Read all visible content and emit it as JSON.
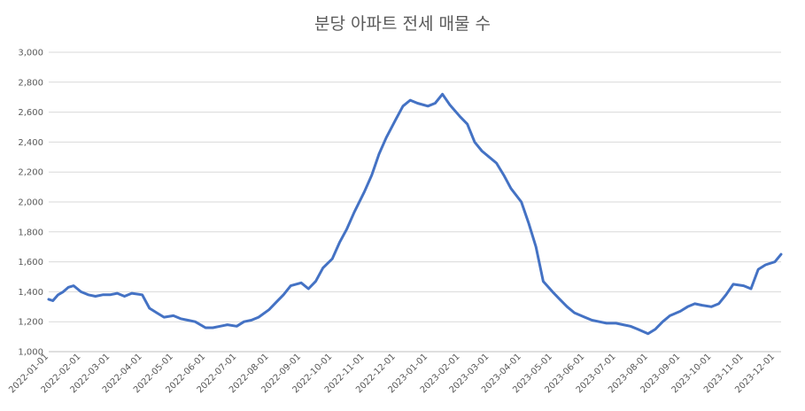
{
  "chart_data": {
    "type": "line",
    "title": "분당 아파트 전세 매물 수",
    "xlabel": "",
    "ylabel": "",
    "ylim": [
      1000,
      3000
    ],
    "yticks": [
      1000,
      1200,
      1400,
      1600,
      1800,
      2000,
      2200,
      2400,
      2600,
      2800,
      3000
    ],
    "ytick_labels": [
      "1,000",
      "1,200",
      "1,400",
      "1,600",
      "1,800",
      "2,000",
      "2,200",
      "2,400",
      "2,600",
      "2,800",
      "3,000"
    ],
    "xtick_labels": [
      "2022-01-01",
      "2022-02-01",
      "2022-03-01",
      "2022-04-01",
      "2022-05-01",
      "2022-06-01",
      "2022-07-01",
      "2022-08-01",
      "2022-09-01",
      "2022-10-01",
      "2022-11-01",
      "2022-12-01",
      "2023-01-01",
      "2023-02-01",
      "2023-03-01",
      "2023-04-01",
      "2023-05-01",
      "2023-06-01",
      "2023-07-01",
      "2023-08-01",
      "2023-09-01",
      "2023-10-01",
      "2023-11-01",
      "2023-12-01"
    ],
    "x_range": [
      "2022-01-01",
      "2023-12-07"
    ],
    "grid": true,
    "legend": "none",
    "line_color": "#4472c4",
    "series": [
      {
        "x": [
          "2022-01-01",
          "2022-01-05",
          "2022-01-10",
          "2022-01-15",
          "2022-01-20",
          "2022-01-25",
          "2022-02-01",
          "2022-02-08",
          "2022-02-15",
          "2022-02-22",
          "2022-03-01",
          "2022-03-08",
          "2022-03-15",
          "2022-03-22",
          "2022-04-01",
          "2022-04-08",
          "2022-04-15",
          "2022-04-22",
          "2022-05-01",
          "2022-05-08",
          "2022-05-15",
          "2022-05-22",
          "2022-06-01",
          "2022-06-08",
          "2022-06-15",
          "2022-06-22",
          "2022-07-01",
          "2022-07-08",
          "2022-07-15",
          "2022-07-22",
          "2022-08-01",
          "2022-08-08",
          "2022-08-15",
          "2022-08-22",
          "2022-09-01",
          "2022-09-08",
          "2022-09-15",
          "2022-09-22",
          "2022-10-01",
          "2022-10-08",
          "2022-10-15",
          "2022-10-22",
          "2022-11-01",
          "2022-11-08",
          "2022-11-15",
          "2022-11-22",
          "2022-12-01",
          "2022-12-08",
          "2022-12-15",
          "2022-12-22",
          "2023-01-01",
          "2023-01-08",
          "2023-01-15",
          "2023-01-22",
          "2023-02-01",
          "2023-02-08",
          "2023-02-15",
          "2023-02-22",
          "2023-03-01",
          "2023-03-08",
          "2023-03-15",
          "2023-03-22",
          "2023-04-01",
          "2023-04-08",
          "2023-04-15",
          "2023-04-22",
          "2023-05-01",
          "2023-05-08",
          "2023-05-15",
          "2023-05-22",
          "2023-06-01",
          "2023-06-08",
          "2023-06-15",
          "2023-06-22",
          "2023-07-01",
          "2023-07-08",
          "2023-07-15",
          "2023-07-22",
          "2023-08-01",
          "2023-08-08",
          "2023-08-15",
          "2023-08-22",
          "2023-09-01",
          "2023-09-08",
          "2023-09-15",
          "2023-09-22",
          "2023-10-01",
          "2023-10-08",
          "2023-10-15",
          "2023-10-22",
          "2023-11-01",
          "2023-11-08",
          "2023-11-15",
          "2023-11-22",
          "2023-12-01",
          "2023-12-07"
        ],
        "y": [
          1350,
          1340,
          1380,
          1400,
          1430,
          1440,
          1400,
          1380,
          1370,
          1380,
          1380,
          1390,
          1370,
          1390,
          1380,
          1290,
          1260,
          1230,
          1240,
          1220,
          1210,
          1200,
          1160,
          1160,
          1170,
          1180,
          1170,
          1200,
          1210,
          1230,
          1280,
          1330,
          1380,
          1440,
          1460,
          1420,
          1470,
          1560,
          1620,
          1730,
          1820,
          1930,
          2070,
          2180,
          2320,
          2430,
          2550,
          2640,
          2680,
          2660,
          2640,
          2660,
          2720,
          2650,
          2570,
          2520,
          2400,
          2340,
          2300,
          2260,
          2180,
          2090,
          2000,
          1860,
          1700,
          1470,
          1400,
          1350,
          1300,
          1260,
          1230,
          1210,
          1200,
          1190,
          1190,
          1180,
          1170,
          1150,
          1120,
          1150,
          1200,
          1240,
          1270,
          1300,
          1320,
          1310,
          1300,
          1320,
          1380,
          1450,
          1440,
          1420,
          1550,
          1580,
          1600,
          1650
        ]
      }
    ]
  }
}
